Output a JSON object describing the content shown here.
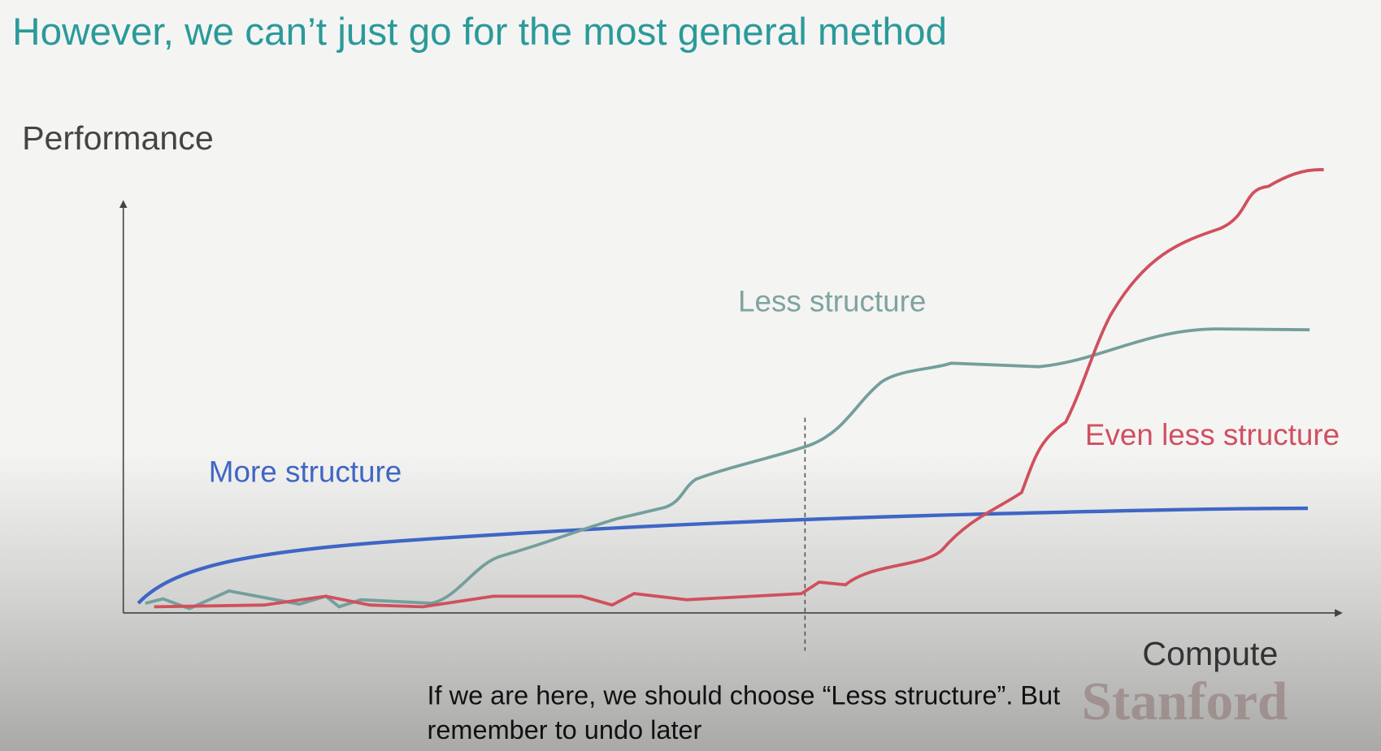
{
  "slide": {
    "title": "However, we can’t just go for the most general method"
  },
  "chart": {
    "y_label": "Performance",
    "x_label": "Compute",
    "curves": [
      {
        "label": "More structure"
      },
      {
        "label": "Less structure"
      },
      {
        "label": "Even less structure"
      }
    ]
  },
  "caption": {
    "lines": [
      "If we are here, we should choose “Less structure”. But",
      "remember to undo later"
    ]
  },
  "watermark": "Stanford"
}
